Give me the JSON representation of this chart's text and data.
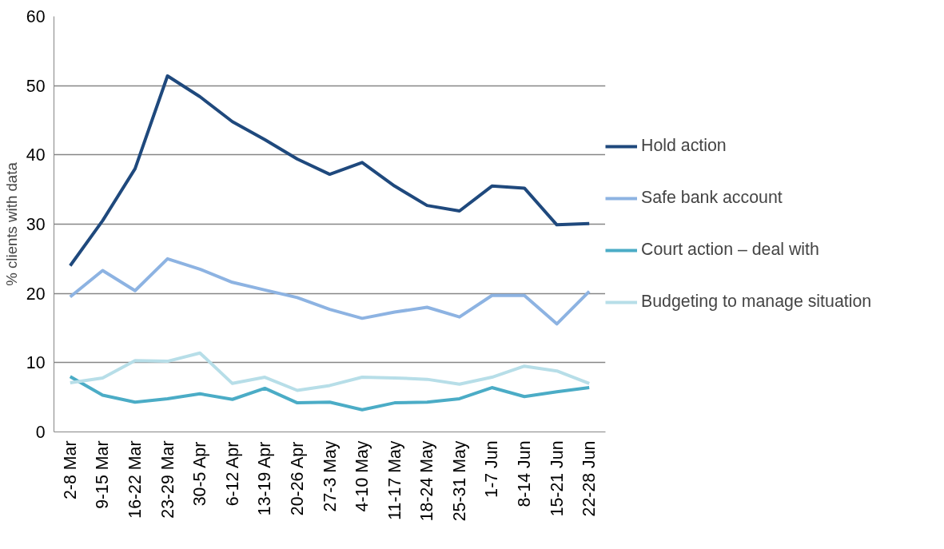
{
  "chart_data": {
    "type": "line",
    "ylabel": "% clients with data",
    "categories": [
      "2-8 Mar",
      "9-15 Mar",
      "16-22 Mar",
      "23-29 Mar",
      "30-5 Apr",
      "6-12 Apr",
      "13-19 Apr",
      "20-26 Apr",
      "27-3 May",
      "4-10 May",
      "11-17 May",
      "18-24 May",
      "25-31 May",
      "1-7 Jun",
      "8-14 Jun",
      "15-21 Jun",
      "22-28 Jun"
    ],
    "series": [
      {
        "name": "Hold action",
        "color": "#1f497d",
        "values": [
          24.0,
          30.5,
          38.0,
          51.4,
          48.4,
          44.8,
          42.2,
          39.4,
          37.2,
          38.9,
          35.5,
          32.7,
          31.9,
          35.5,
          35.2,
          29.9,
          30.1
        ]
      },
      {
        "name": "Safe bank account",
        "color": "#8db3e2",
        "values": [
          19.5,
          23.3,
          20.4,
          25.0,
          23.5,
          21.6,
          20.5,
          19.4,
          17.7,
          16.4,
          17.3,
          18.0,
          16.6,
          19.7,
          19.7,
          15.6,
          20.3
        ]
      },
      {
        "name": "Court action – deal with",
        "color": "#4bacc6",
        "values": [
          8.0,
          5.3,
          4.3,
          4.8,
          5.5,
          4.7,
          6.3,
          4.2,
          4.3,
          3.2,
          4.2,
          4.3,
          4.8,
          6.4,
          5.1,
          5.8,
          6.4
        ]
      },
      {
        "name": "Budgeting to manage situation",
        "color": "#b7dee8",
        "values": [
          7.1,
          7.8,
          10.3,
          10.2,
          11.4,
          7.0,
          7.9,
          6.0,
          6.7,
          7.9,
          7.8,
          7.6,
          6.9,
          7.9,
          9.5,
          8.8,
          7.0
        ]
      }
    ],
    "ylim": [
      0,
      60
    ],
    "yticks": [
      0,
      10,
      20,
      30,
      40,
      50,
      60
    ],
    "grid": "y",
    "legend": "right",
    "marker": "none",
    "line_style": "solid"
  }
}
